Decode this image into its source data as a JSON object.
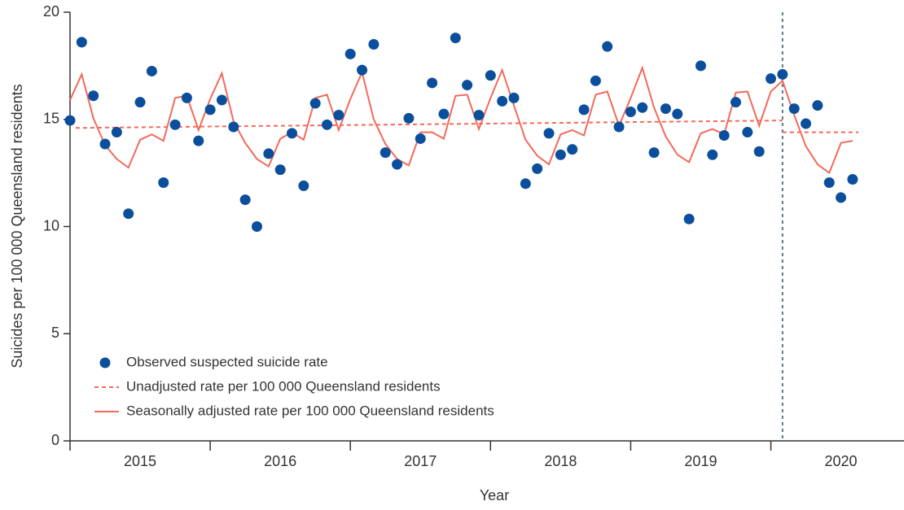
{
  "chart_data": {
    "type": "scatter_line",
    "x_label": "Year",
    "y_label": "Suicides per 100 000 Queensland residents",
    "xlim": [
      2015,
      2020.95
    ],
    "ylim": [
      0,
      20
    ],
    "yticks": [
      0,
      5,
      10,
      15,
      20
    ],
    "xticks": [
      {
        "value": 2015.5,
        "label": "2015"
      },
      {
        "value": 2016.5,
        "label": "2016"
      },
      {
        "value": 2017.5,
        "label": "2017"
      },
      {
        "value": 2018.5,
        "label": "2018"
      },
      {
        "value": 2019.5,
        "label": "2019"
      },
      {
        "value": 2020.5,
        "label": "2020"
      }
    ],
    "xtick_marks": [
      2015,
      2016,
      2017,
      2018,
      2019,
      2020
    ],
    "vline": 2020.0833,
    "x": [
      2015,
      2015.0833,
      2015.1667,
      2015.25,
      2015.3333,
      2015.4167,
      2015.5,
      2015.5833,
      2015.6667,
      2015.75,
      2015.8333,
      2015.9167,
      2016,
      2016.0833,
      2016.1667,
      2016.25,
      2016.3333,
      2016.4167,
      2016.5,
      2016.5833,
      2016.6667,
      2016.75,
      2016.8333,
      2016.9167,
      2017,
      2017.0833,
      2017.1667,
      2017.25,
      2017.3333,
      2017.4167,
      2017.5,
      2017.5833,
      2017.6667,
      2017.75,
      2017.8333,
      2017.9167,
      2018,
      2018.0833,
      2018.1667,
      2018.25,
      2018.3333,
      2018.4167,
      2018.5,
      2018.5833,
      2018.6667,
      2018.75,
      2018.8333,
      2018.9167,
      2019,
      2019.0833,
      2019.1667,
      2019.25,
      2019.3333,
      2019.4167,
      2019.5,
      2019.5833,
      2019.6667,
      2019.75,
      2019.8333,
      2019.9167,
      2020,
      2020.0833,
      2020.1667,
      2020.25,
      2020.3333,
      2020.4167,
      2020.5,
      2020.5833
    ],
    "series": [
      {
        "name": "Observed suspected suicide rate",
        "style": "dots",
        "color": "#0b4f9c",
        "values": [
          14.95,
          18.6,
          16.1,
          13.85,
          14.4,
          10.6,
          15.8,
          17.25,
          12.05,
          14.75,
          16.0,
          14.0,
          15.45,
          15.9,
          14.65,
          11.25,
          10.0,
          13.4,
          12.65,
          14.35,
          11.9,
          15.75,
          14.75,
          15.2,
          18.05,
          17.3,
          18.5,
          13.45,
          12.9,
          15.05,
          14.1,
          16.7,
          15.25,
          18.8,
          16.6,
          15.2,
          17.05,
          15.85,
          16.0,
          12.0,
          12.7,
          14.35,
          13.35,
          13.6,
          15.45,
          16.8,
          18.4,
          14.65,
          15.35,
          15.55,
          13.45,
          15.5,
          15.25,
          10.35,
          17.5,
          13.35,
          14.25,
          15.8,
          14.4,
          13.5,
          16.9,
          17.1,
          15.5,
          14.8,
          15.65,
          12.05,
          11.35,
          12.2
        ]
      },
      {
        "name": "Unadjusted rate per 100 000 Queensland residents",
        "style": "dashed",
        "color": "#f26a5b",
        "x": [
          2015.04,
          2020.0833,
          null,
          2020.0833,
          2020.625
        ],
        "values": [
          14.6,
          14.95,
          null,
          14.4,
          14.4
        ]
      },
      {
        "name": "Seasonally adjusted rate per 100 000 Queensland residents",
        "style": "solid",
        "color": "#f26a5b",
        "values": [
          15.9,
          17.1,
          15.05,
          13.8,
          13.15,
          12.75,
          14.05,
          14.3,
          14.0,
          16.0,
          16.1,
          14.5,
          15.95,
          17.15,
          14.9,
          13.9,
          13.15,
          12.8,
          14.1,
          14.4,
          14.05,
          16.0,
          16.15,
          14.5,
          15.95,
          17.2,
          15.0,
          13.85,
          13.15,
          12.85,
          14.4,
          14.4,
          14.1,
          16.1,
          16.15,
          14.55,
          16.0,
          17.3,
          15.65,
          14.05,
          13.3,
          12.9,
          14.3,
          14.5,
          14.25,
          16.15,
          16.3,
          14.7,
          16.0,
          17.4,
          15.55,
          14.2,
          13.35,
          13.0,
          14.35,
          14.55,
          14.3,
          16.25,
          16.3,
          14.7,
          16.3,
          16.8,
          15.2,
          13.75,
          12.9,
          12.5,
          13.9,
          14.0
        ]
      }
    ]
  }
}
